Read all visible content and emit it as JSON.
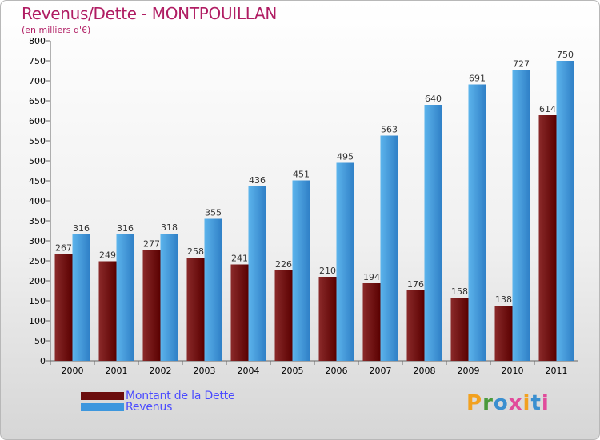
{
  "title": "Revenus/Dette - MONTPOUILLAN",
  "subtitle": "(en milliers d'€)",
  "legend": [
    {
      "label": "Montant de la Dette",
      "color": "#6b0d0d"
    },
    {
      "label": "Revenus",
      "color": "#3d97de"
    }
  ],
  "logo": {
    "text": "Proxiti",
    "colors": [
      "#f2a11f",
      "#4a9a3c",
      "#3a8fd0",
      "#e14b9b",
      "#f2a11f",
      "#3a8fd0",
      "#e14b9b"
    ]
  },
  "colors": {
    "dette_top": "#8a2a2a",
    "dette_bottom": "#5a0000",
    "revenus_top": "#5cb4ec",
    "revenus_bottom": "#2f7fc6",
    "axis_text": "#000000",
    "value_text": "#333333",
    "grid": "#cfcfcf"
  },
  "chart_data": {
    "type": "bar",
    "title": "Revenus/Dette - MONTPOUILLAN",
    "subtitle": "(en milliers d'€)",
    "categories": [
      "2000",
      "2001",
      "2002",
      "2003",
      "2004",
      "2005",
      "2006",
      "2007",
      "2008",
      "2009",
      "2010",
      "2011"
    ],
    "series": [
      {
        "name": "Montant de la Dette",
        "values": [
          267,
          249,
          277,
          258,
          241,
          226,
          210,
          194,
          176,
          158,
          138,
          614
        ]
      },
      {
        "name": "Revenus",
        "values": [
          316,
          316,
          318,
          355,
          436,
          451,
          495,
          563,
          640,
          691,
          727,
          750
        ]
      }
    ],
    "ylim": [
      0,
      800
    ],
    "yticks": [
      0,
      50,
      100,
      150,
      200,
      250,
      300,
      350,
      400,
      450,
      500,
      550,
      600,
      650,
      700,
      750,
      800
    ],
    "xlabel": "",
    "ylabel": "",
    "legend_position": "bottom-left",
    "grid": false
  }
}
